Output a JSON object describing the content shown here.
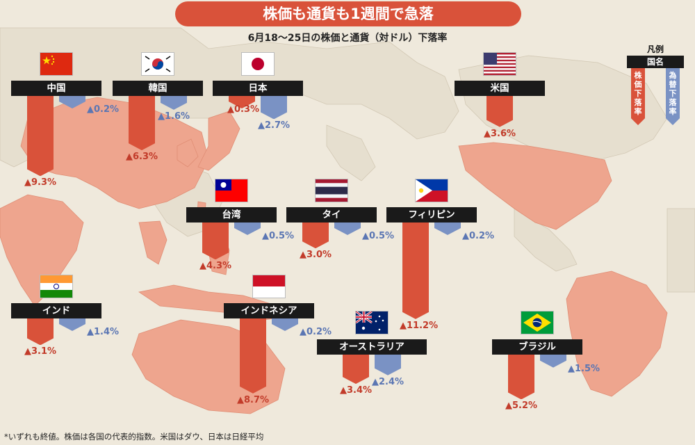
{
  "title": "株価も通貨も1週間で急落",
  "subtitle": "6月18～25日の株価と通貨（対ドル）下落率",
  "footnote": "*いずれも終値。株価は各国の代表的指数。米国はダウ、日本は日経平均",
  "legend": {
    "title": "凡例",
    "country_label": "国名",
    "stock_label": "株価下落率",
    "fx_label": "為替下落率"
  },
  "colors": {
    "stock": "#d9523a",
    "fx": "#7a92c4",
    "land": "#eea58e",
    "background": "#efe9dc"
  },
  "chart_data": {
    "type": "bar",
    "unit": "%",
    "value_prefix": "▲",
    "categories": [
      "中国",
      "韓国",
      "日本",
      "米国",
      "台湾",
      "タイ",
      "フィリピン",
      "インド",
      "インドネシア",
      "オーストラリア",
      "ブラジル"
    ],
    "series": [
      {
        "name": "株価下落率",
        "values": [
          9.3,
          6.3,
          0.3,
          3.6,
          4.3,
          3.0,
          11.2,
          3.1,
          8.7,
          3.4,
          5.2
        ]
      },
      {
        "name": "為替下落率",
        "values": [
          0.2,
          1.6,
          2.7,
          null,
          0.5,
          0.5,
          0.2,
          1.4,
          0.2,
          2.4,
          1.5
        ]
      }
    ],
    "countries": [
      {
        "key": "china",
        "name": "中国",
        "flag": "china-flag",
        "stock": 9.3,
        "fx": 0.2
      },
      {
        "key": "korea",
        "name": "韓国",
        "flag": "korea-flag",
        "stock": 6.3,
        "fx": 1.6
      },
      {
        "key": "japan",
        "name": "日本",
        "flag": "japan-flag",
        "stock": 0.3,
        "fx": 2.7
      },
      {
        "key": "usa",
        "name": "米国",
        "flag": "usa-flag",
        "stock": 3.6,
        "fx": null
      },
      {
        "key": "taiwan",
        "name": "台湾",
        "flag": "taiwan-flag",
        "stock": 4.3,
        "fx": 0.5
      },
      {
        "key": "thailand",
        "name": "タイ",
        "flag": "thailand-flag",
        "stock": 3.0,
        "fx": 0.5
      },
      {
        "key": "philippines",
        "name": "フィリピン",
        "flag": "philippines-flag",
        "stock": 11.2,
        "fx": 0.2
      },
      {
        "key": "india",
        "name": "インド",
        "flag": "india-flag",
        "stock": 3.1,
        "fx": 1.4
      },
      {
        "key": "indonesia",
        "name": "インドネシア",
        "flag": "indonesia-flag",
        "stock": 8.7,
        "fx": 0.2
      },
      {
        "key": "australia",
        "name": "オーストラリア",
        "flag": "australia-flag",
        "stock": 3.4,
        "fx": 2.4
      },
      {
        "key": "brazil",
        "name": "ブラジル",
        "flag": "brazil-flag",
        "stock": 5.2,
        "fx": 1.5
      }
    ]
  }
}
